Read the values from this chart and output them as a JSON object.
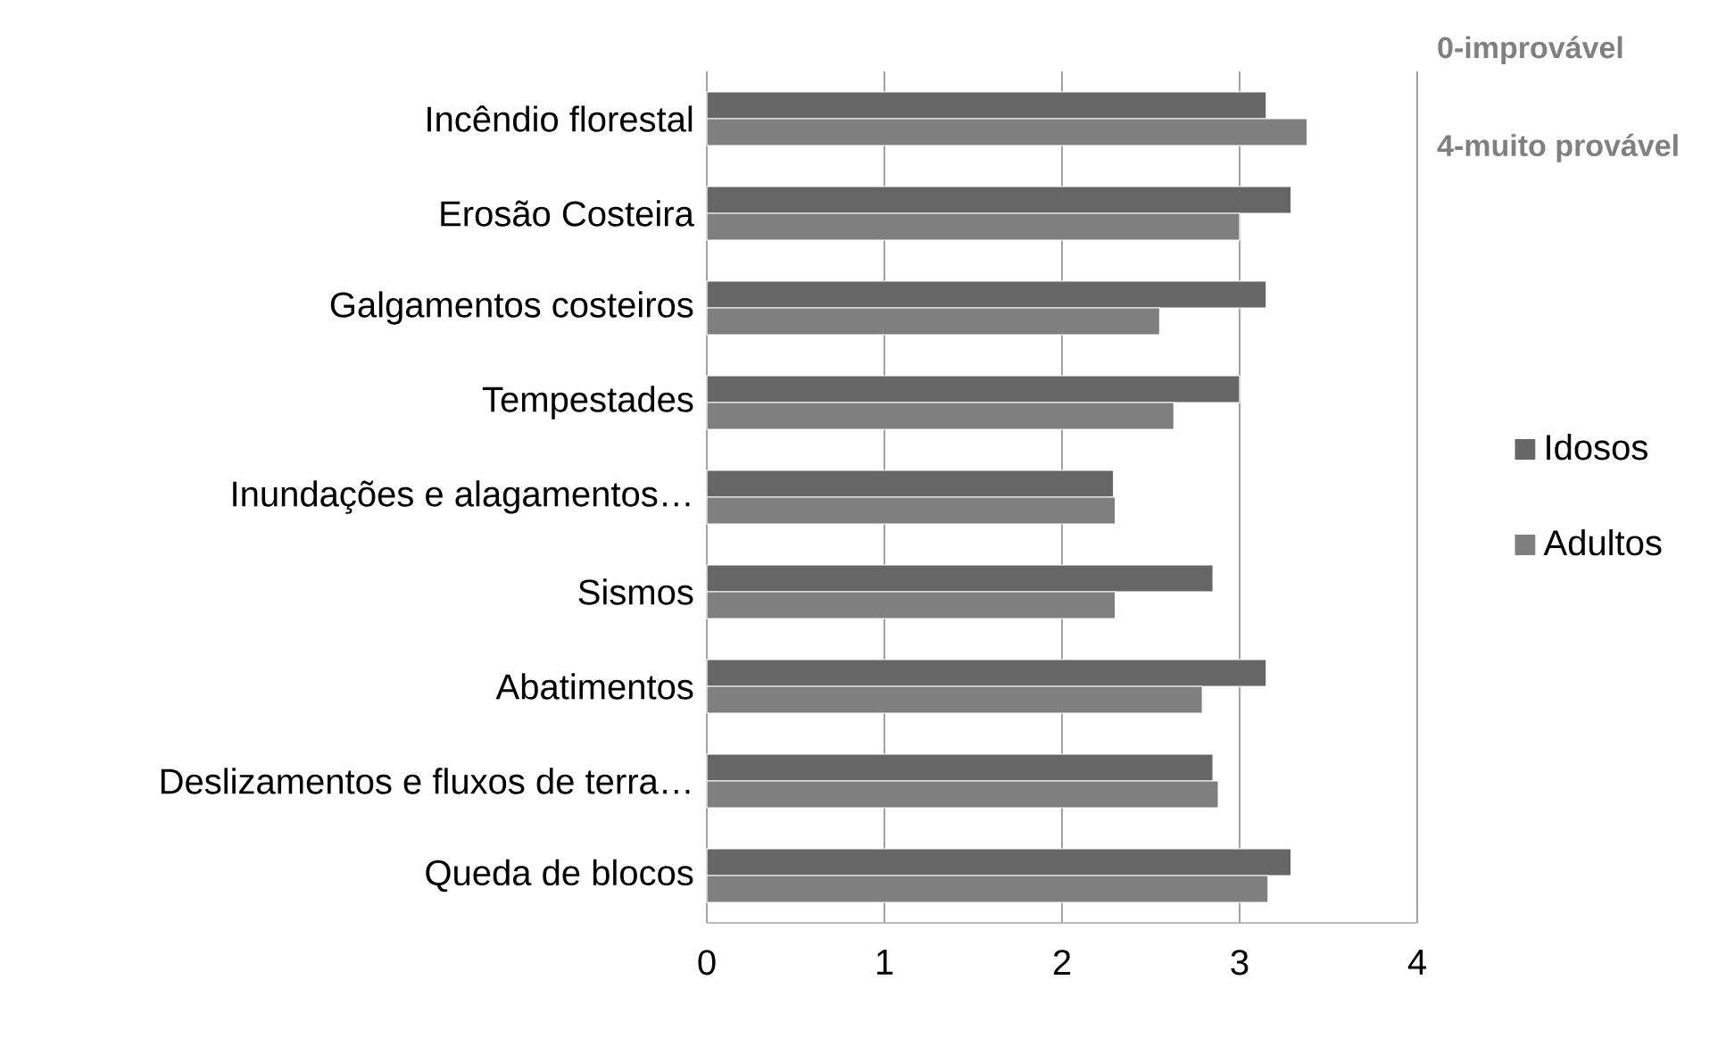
{
  "chart_data": {
    "type": "bar",
    "orientation": "horizontal",
    "categories": [
      "Incêndio florestal",
      "Erosão Costeira",
      "Galgamentos costeiros",
      "Tempestades",
      "Inundações e alagamentos…",
      "Sismos",
      "Abatimentos",
      "Deslizamentos e fluxos de terra…",
      "Queda de blocos"
    ],
    "series": [
      {
        "name": "Idosos",
        "color": "#666666",
        "values": [
          3.15,
          3.29,
          3.15,
          3.0,
          2.29,
          2.85,
          3.15,
          2.85,
          3.29
        ]
      },
      {
        "name": "Adultos",
        "color": "#7f7f7f",
        "values": [
          3.38,
          3.0,
          2.55,
          2.63,
          2.3,
          2.3,
          2.79,
          2.88,
          3.16
        ]
      }
    ],
    "xlim": [
      0,
      4
    ],
    "xticks": [
      0,
      1,
      2,
      3,
      4
    ],
    "grid": "x",
    "legend": "right",
    "annotations": [
      "0-improvável",
      "4-muito provável"
    ]
  }
}
